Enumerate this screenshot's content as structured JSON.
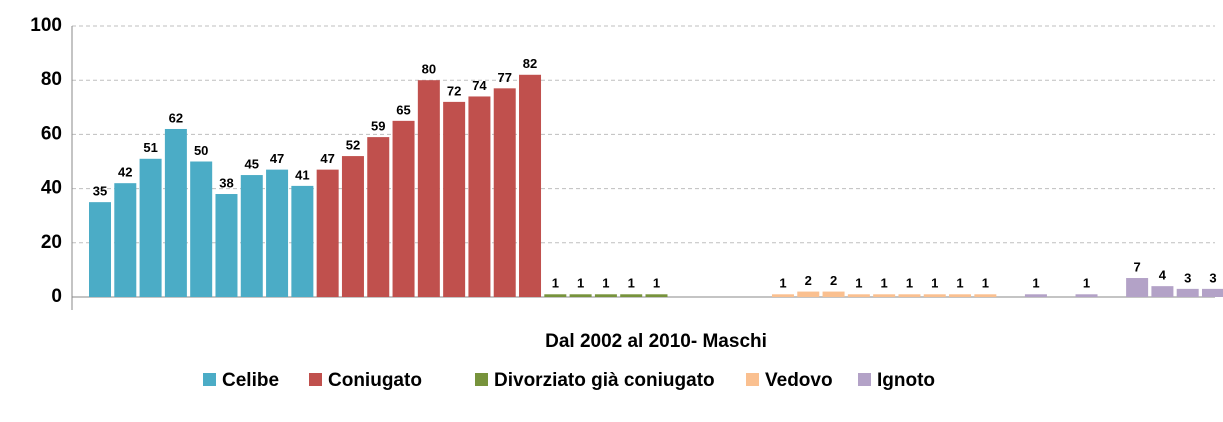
{
  "chart_data": {
    "type": "bar",
    "x_label": "Dal 2002 al 2010- Maschi",
    "series": [
      {
        "name": "Celibe",
        "color": "#4bacc6",
        "values": [
          35,
          42,
          51,
          62,
          50,
          38,
          45,
          47,
          41
        ]
      },
      {
        "name": "Coniugato",
        "color": "#c0504d",
        "values": [
          47,
          52,
          59,
          65,
          80,
          72,
          74,
          77,
          82
        ]
      },
      {
        "name": "Divorziato già coniugato",
        "color": "#77933c",
        "values": [
          1,
          1,
          1,
          1,
          1,
          null,
          null,
          null,
          null
        ]
      },
      {
        "name": "Vedovo",
        "color": "#fac090",
        "values": [
          1,
          2,
          2,
          1,
          1,
          1,
          1,
          1,
          1
        ]
      },
      {
        "name": "Ignoto",
        "color": "#b3a2c7",
        "values": [
          null,
          1,
          null,
          1,
          null,
          7,
          4,
          3,
          3
        ]
      }
    ],
    "ylim": [
      0,
      100
    ],
    "yticks": [
      0,
      20,
      40,
      60,
      80,
      100
    ],
    "grid": true,
    "legend": "bottom"
  }
}
